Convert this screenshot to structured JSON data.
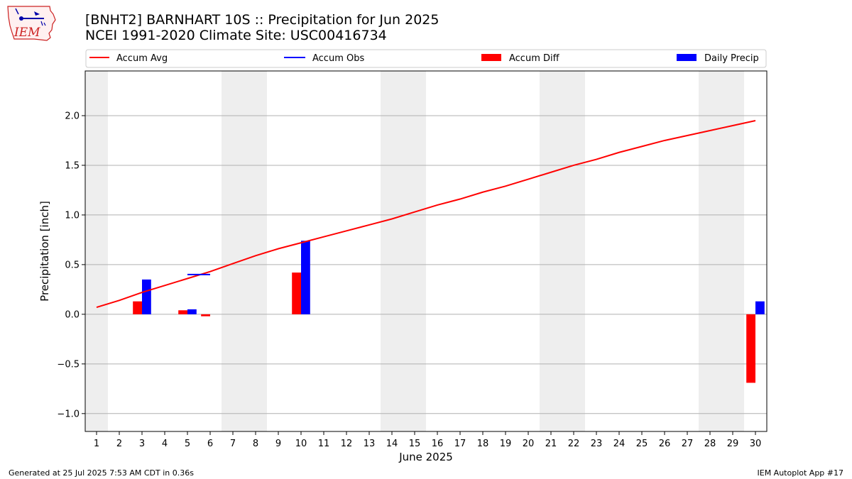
{
  "header": {
    "title_line1": "[BNHT2] BARNHART 10S :: Precipitation for Jun 2025",
    "title_line2": "NCEI 1991-2020 Climate Site: USC00416734"
  },
  "logo": {
    "text": "IEM",
    "icon": "iowa-state-outline-logo",
    "color": "#cc2222"
  },
  "footer": {
    "left": "Generated at 25 Jul 2025 7:53 AM CDT in 0.36s",
    "right": "IEM Autoplot App #17"
  },
  "chart_data": {
    "type": "bar",
    "xlabel": "June 2025",
    "ylabel": "Precipitation [inch]",
    "ylim": [
      -1.18,
      2.45
    ],
    "yticks": [
      "−1.0",
      "−0.5",
      "0.0",
      "0.5",
      "1.0",
      "1.5",
      "2.0"
    ],
    "ytick_values": [
      -1.0,
      -0.5,
      0.0,
      0.5,
      1.0,
      1.5,
      2.0
    ],
    "days": [
      1,
      2,
      3,
      4,
      5,
      6,
      7,
      8,
      9,
      10,
      11,
      12,
      13,
      14,
      15,
      16,
      17,
      18,
      19,
      20,
      21,
      22,
      23,
      24,
      25,
      26,
      27,
      28,
      29,
      30
    ],
    "weekend_days": [
      1,
      7,
      8,
      14,
      15,
      21,
      22,
      28,
      29
    ],
    "grid": "y",
    "legend_placement": "top",
    "legend": [
      {
        "label": "Accum Avg",
        "kind": "line",
        "color": "#ff0000"
      },
      {
        "label": "Accum Obs",
        "kind": "line",
        "color": "#0000ff"
      },
      {
        "label": "Accum Diff",
        "kind": "bar",
        "color": "#ff0000"
      },
      {
        "label": "Daily Precip",
        "kind": "bar",
        "color": "#0000ff"
      }
    ],
    "series": [
      {
        "name": "Accum Avg",
        "kind": "line",
        "color": "#ff0000",
        "values": [
          0.07,
          0.14,
          0.22,
          0.29,
          0.36,
          0.43,
          0.51,
          0.59,
          0.66,
          0.72,
          0.78,
          0.84,
          0.9,
          0.96,
          1.03,
          1.1,
          1.16,
          1.23,
          1.29,
          1.36,
          1.43,
          1.5,
          1.56,
          1.63,
          1.69,
          1.75,
          1.8,
          1.85,
          1.9,
          1.95
        ]
      },
      {
        "name": "Accum Obs",
        "kind": "step",
        "color": "#0000ff",
        "points": [
          {
            "x_start": 5,
            "x_end": 6,
            "y": 0.4
          }
        ]
      },
      {
        "name": "Accum Diff",
        "kind": "bar",
        "color": "#ff0000",
        "values": [
          null,
          null,
          0.13,
          null,
          0.04,
          -0.02,
          null,
          null,
          null,
          0.42,
          null,
          null,
          null,
          null,
          null,
          null,
          null,
          null,
          null,
          null,
          null,
          null,
          null,
          null,
          null,
          null,
          null,
          null,
          null,
          -0.69
        ]
      },
      {
        "name": "Daily Precip",
        "kind": "bar",
        "color": "#0000ff",
        "values": [
          null,
          null,
          0.35,
          null,
          0.05,
          null,
          null,
          null,
          null,
          0.74,
          null,
          null,
          null,
          null,
          null,
          null,
          null,
          null,
          null,
          null,
          null,
          null,
          null,
          null,
          null,
          null,
          null,
          null,
          null,
          0.13
        ]
      }
    ]
  }
}
